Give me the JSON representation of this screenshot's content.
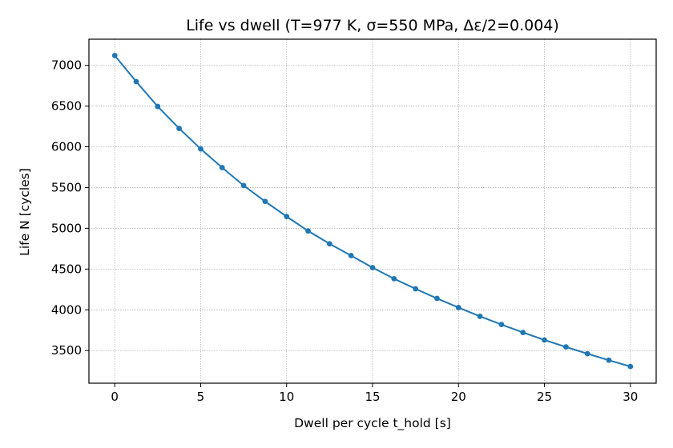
{
  "chart_data": {
    "type": "line",
    "title": "Life vs dwell (T=977 K, σ=550 MPa, Δε/2=0.004)",
    "xlabel": "Dwell per cycle t_hold [s]",
    "ylabel": "Life N [cycles]",
    "xlim": [
      -1.5,
      31.5
    ],
    "ylim": [
      3100,
      7320
    ],
    "xticks": [
      0,
      5,
      10,
      15,
      20,
      25,
      30
    ],
    "yticks": [
      3500,
      4000,
      4500,
      5000,
      5500,
      6000,
      6500,
      7000
    ],
    "grid": true,
    "color": "#1f77b4",
    "series": [
      {
        "x": [
          0,
          1.25,
          2.5,
          3.75,
          5,
          6.25,
          7.5,
          8.75,
          10,
          11.25,
          12.5,
          13.75,
          15,
          16.25,
          17.5,
          18.75,
          20,
          21.25,
          22.5,
          23.75,
          25,
          26.25,
          27.5,
          28.75,
          30
        ],
        "y": [
          7120,
          6800,
          6495,
          6225,
          5975,
          5745,
          5525,
          5330,
          5145,
          4968,
          4810,
          4665,
          4518,
          4382,
          4258,
          4140,
          4028,
          3920,
          3820,
          3722,
          3630,
          3545,
          3462,
          3382,
          3305
        ]
      }
    ]
  }
}
